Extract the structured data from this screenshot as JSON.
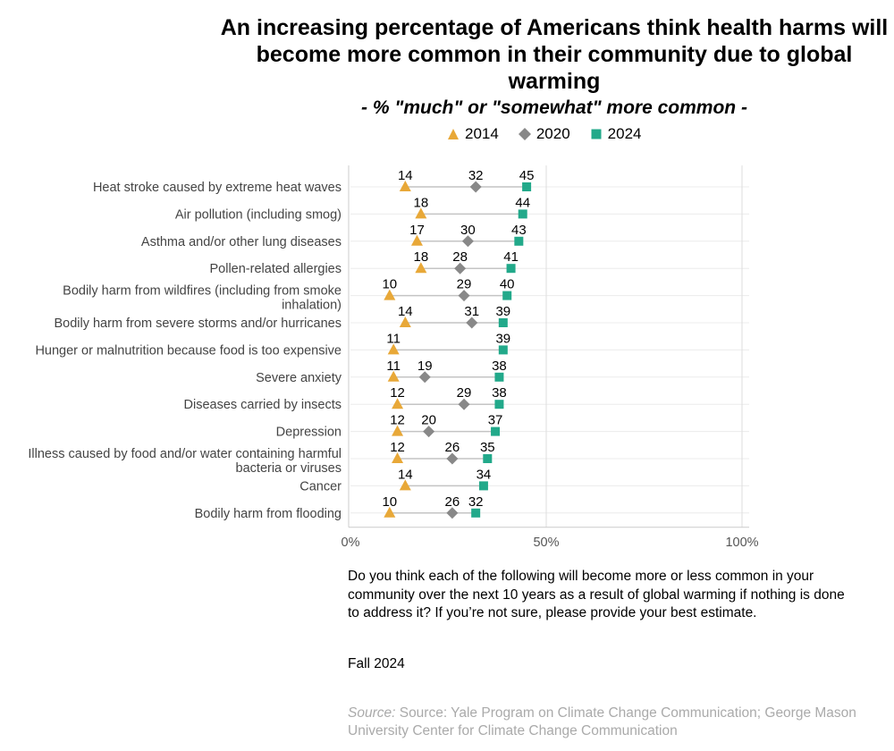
{
  "chart_data": {
    "type": "scatter",
    "title": "An increasing percentage of Americans think health harms will become more common in their community due to global warming",
    "subtitle": "- % \"much\" or \"somewhat\" more common  -",
    "series": [
      {
        "name": "2014",
        "color": "#e8a838",
        "marker": "triangle",
        "values": [
          14,
          18,
          17,
          18,
          10,
          14,
          11,
          11,
          12,
          12,
          12,
          14,
          10
        ]
      },
      {
        "name": "2020",
        "color": "#888888",
        "marker": "diamond",
        "values": [
          32,
          null,
          30,
          28,
          29,
          31,
          null,
          19,
          29,
          20,
          26,
          null,
          26
        ]
      },
      {
        "name": "2024",
        "color": "#22a98a",
        "marker": "square",
        "values": [
          45,
          44,
          43,
          41,
          40,
          39,
          39,
          38,
          38,
          37,
          35,
          34,
          32
        ]
      }
    ],
    "categories": [
      [
        "Heat stroke caused by extreme heat waves"
      ],
      [
        "Air pollution (including smog)"
      ],
      [
        "Asthma and/or other lung diseases"
      ],
      [
        "Pollen-related allergies"
      ],
      [
        "Bodily harm from wildfires (including from smoke",
        "inhalation)"
      ],
      [
        "Bodily harm from severe storms and/or hurricanes"
      ],
      [
        "Hunger or malnutrition because food is too expensive"
      ],
      [
        "Severe anxiety"
      ],
      [
        "Diseases carried by insects"
      ],
      [
        "Depression"
      ],
      [
        "Illness caused by food and/or water containing harmful",
        "bacteria or viruses"
      ],
      [
        "Cancer"
      ],
      [
        "Bodily harm from flooding"
      ]
    ],
    "xlim": [
      0,
      100
    ],
    "xticks": [
      0,
      50,
      100
    ],
    "xtick_labels": [
      "0%",
      "50%",
      "100%"
    ],
    "grid": true,
    "legend_position": "top"
  },
  "note": "Do you think each of the following will become more or less common in your community over the next 10 years as a result of global warming if nothing is done to address it? If you’re not sure, please provide your best estimate.",
  "season": "Fall 2024",
  "source": {
    "prefix": "Source:",
    "text": " Source: Yale Program on Climate Change Communication; George Mason University Center for Climate Change Communication"
  }
}
